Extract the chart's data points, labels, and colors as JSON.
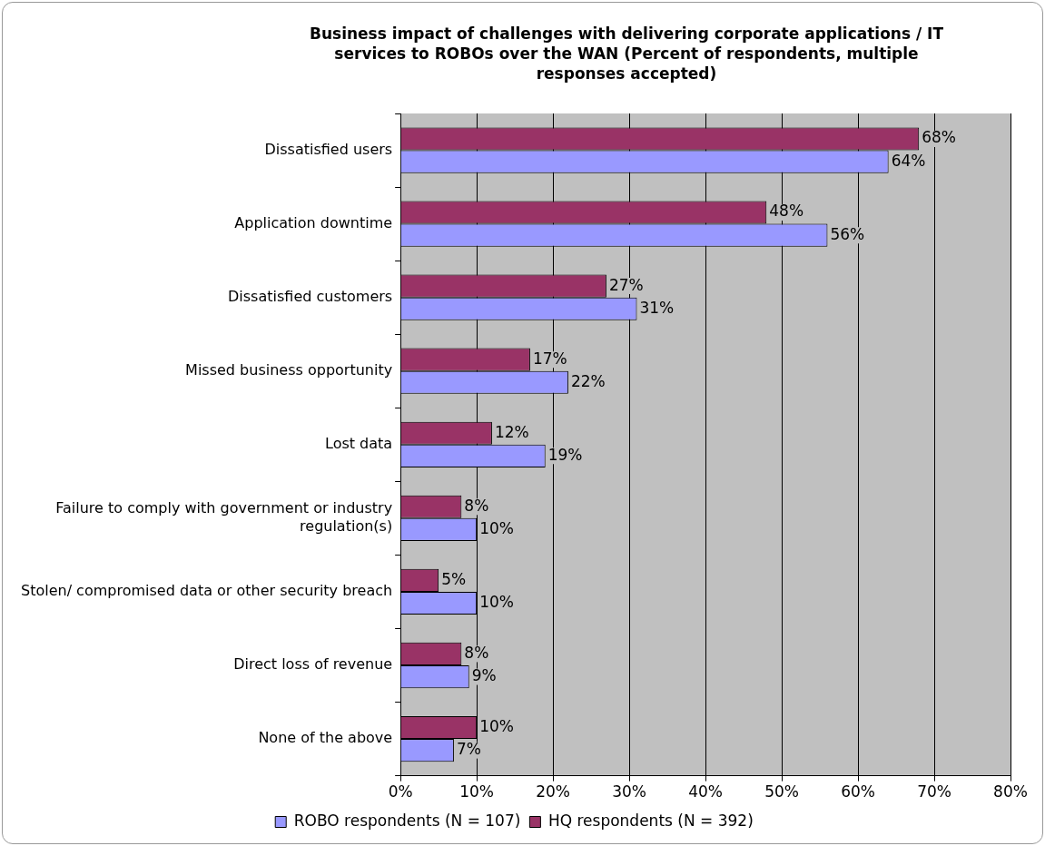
{
  "chart_data": {
    "type": "bar",
    "orientation": "horizontal",
    "title": "Business impact of challenges with delivering corporate applications / IT services to ROBOs over the WAN (Percent of respondents, multiple responses accepted)",
    "categories": [
      "Dissatisfied users",
      "Application downtime",
      "Dissatisfied customers",
      "Missed business opportunity",
      "Lost data",
      "Failure to comply with government or industry regulation(s)",
      "Stolen/ compromised data or other security breach",
      "Direct loss of revenue",
      "None of the above"
    ],
    "series": [
      {
        "name": "HQ respondents (N = 392)",
        "color": "#993366",
        "values": [
          68,
          48,
          27,
          17,
          12,
          8,
          5,
          8,
          10
        ],
        "value_labels": [
          "68%",
          "48%",
          "27%",
          "17%",
          "12%",
          "8%",
          "5%",
          "8%",
          "10%"
        ]
      },
      {
        "name": "ROBO respondents (N = 107)",
        "color": "#9999ff",
        "values": [
          64,
          56,
          31,
          22,
          19,
          10,
          10,
          9,
          7
        ],
        "value_labels": [
          "64%",
          "56%",
          "31%",
          "22%",
          "19%",
          "10%",
          "10%",
          "9%",
          "7%"
        ]
      }
    ],
    "xlim": [
      0,
      80
    ],
    "xticks": [
      {
        "value": 0,
        "label": "0%"
      },
      {
        "value": 10,
        "label": "10%"
      },
      {
        "value": 20,
        "label": "20%"
      },
      {
        "value": 30,
        "label": "30%"
      },
      {
        "value": 40,
        "label": "40%"
      },
      {
        "value": 50,
        "label": "50%"
      },
      {
        "value": 60,
        "label": "60%"
      },
      {
        "value": 70,
        "label": "70%"
      },
      {
        "value": 80,
        "label": "80%"
      }
    ],
    "grid": "x",
    "legend": "bottom"
  }
}
